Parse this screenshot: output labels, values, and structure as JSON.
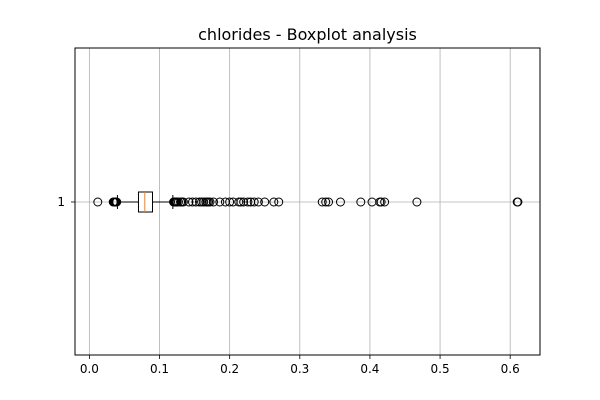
{
  "chart_data": {
    "type": "boxplot",
    "orientation": "horizontal",
    "title": "chlorides - Boxplot analysis",
    "xlabel": "",
    "ylabel": "",
    "grid": true,
    "xlim": [
      -0.0205,
      0.6425
    ],
    "x_ticks": [
      0.0,
      0.1,
      0.2,
      0.3,
      0.4,
      0.5,
      0.6
    ],
    "x_tick_labels": [
      "0.0",
      "0.1",
      "0.2",
      "0.3",
      "0.4",
      "0.5",
      "0.6"
    ],
    "y_tick_labels": [
      "1"
    ],
    "box": {
      "whisker_low": 0.04,
      "q1": 0.07,
      "median": 0.079,
      "q3": 0.09,
      "whisker_high": 0.119
    },
    "outliers": [
      0.012,
      0.034,
      0.035,
      0.036,
      0.037,
      0.038,
      0.039,
      0.12,
      0.121,
      0.122,
      0.123,
      0.124,
      0.125,
      0.127,
      0.13,
      0.132,
      0.134,
      0.142,
      0.147,
      0.152,
      0.157,
      0.16,
      0.163,
      0.166,
      0.168,
      0.17,
      0.172,
      0.177,
      0.186,
      0.194,
      0.2,
      0.205,
      0.213,
      0.216,
      0.22,
      0.226,
      0.23,
      0.235,
      0.241,
      0.25,
      0.263,
      0.27,
      0.332,
      0.337,
      0.341,
      0.358,
      0.387,
      0.403,
      0.414,
      0.416,
      0.421,
      0.467,
      0.61,
      0.611
    ],
    "colors": {
      "box": "#000000",
      "median": "#ff7f0e",
      "grid": "#b0b0b0",
      "outlier_edge": "#000000"
    }
  }
}
